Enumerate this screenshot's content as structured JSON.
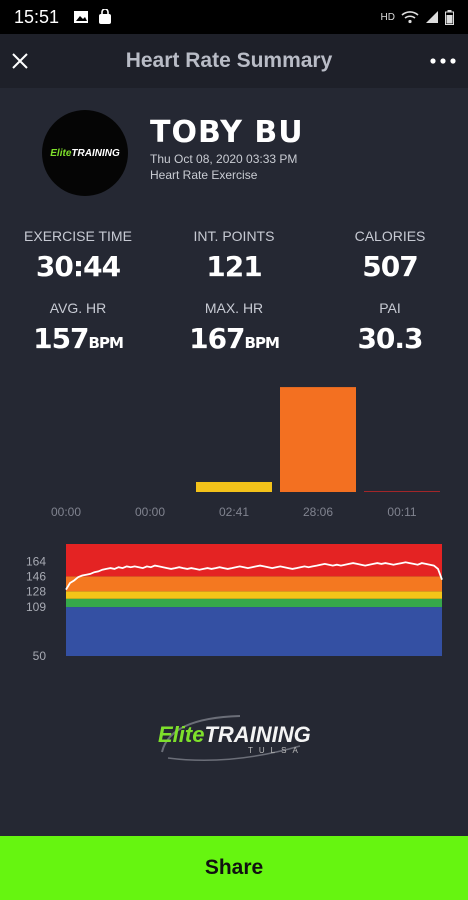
{
  "status_bar": {
    "time": "15:51",
    "network": "HD"
  },
  "header": {
    "title": "Heart Rate Summary"
  },
  "profile": {
    "avatar_text_green": "Elite",
    "avatar_text_white": "TRAINING",
    "name": "TOBY BU",
    "date": "Thu Oct 08, 2020 03:33 PM",
    "exercise_type": "Heart Rate Exercise"
  },
  "stats": {
    "exercise_time": {
      "label": "EXERCISE TIME",
      "value": "30:44"
    },
    "int_points": {
      "label": "INT. POINTS",
      "value": "121"
    },
    "calories": {
      "label": "CALORIES",
      "value": "507"
    },
    "avg_hr": {
      "label": "AVG. HR",
      "value": "157",
      "unit": "BPM"
    },
    "max_hr": {
      "label": "MAX. HR",
      "value": "167",
      "unit": "BPM"
    },
    "pai": {
      "label": "PAI",
      "value": "30.3"
    }
  },
  "chart_data": [
    {
      "type": "bar",
      "categories": [
        "00:00",
        "00:00",
        "02:41",
        "28:06",
        "00:11"
      ],
      "values": [
        0,
        0,
        2.68,
        28.1,
        0.18
      ],
      "colors": [
        "#3a56a8",
        "#2fa84a",
        "#f3c21a",
        "#f37021",
        "#e02525"
      ],
      "ylim": [
        0,
        30
      ]
    },
    {
      "type": "area",
      "yticks": [
        50,
        109,
        128,
        146,
        164
      ],
      "ylim": [
        50,
        185
      ],
      "zones": [
        {
          "from": 50,
          "to": 109,
          "color": "#3450a3"
        },
        {
          "from": 109,
          "to": 119,
          "color": "#36a84a"
        },
        {
          "from": 119,
          "to": 128,
          "color": "#f4c518"
        },
        {
          "from": 128,
          "to": 146,
          "color": "#f47820"
        },
        {
          "from": 146,
          "to": 185,
          "color": "#e42323"
        }
      ],
      "hr_series": [
        130,
        138,
        141,
        145,
        147,
        148,
        149,
        151,
        152,
        154,
        155,
        156,
        155,
        157,
        156,
        158,
        157,
        158,
        157,
        156,
        158,
        157,
        159,
        158,
        157,
        156,
        155,
        156,
        157,
        156,
        155,
        156,
        155,
        154,
        155,
        156,
        155,
        156,
        157,
        156,
        155,
        156,
        157,
        158,
        157,
        156,
        157,
        158,
        159,
        158,
        157,
        156,
        157,
        158,
        157,
        156,
        155,
        156,
        157,
        158,
        157,
        158,
        159,
        160,
        161,
        160,
        159,
        160,
        159,
        160,
        161,
        162,
        161,
        160,
        159,
        160,
        161,
        162,
        161,
        162,
        161,
        160,
        161,
        162,
        163,
        162,
        161,
        160,
        162,
        161,
        160,
        159,
        155,
        142
      ]
    }
  ],
  "logo": {
    "green": "Elite",
    "white": "TRAINING",
    "sub": "TULSA"
  },
  "share": {
    "label": "Share"
  },
  "colors": {
    "accent": "#66f510",
    "background": "#252833"
  }
}
